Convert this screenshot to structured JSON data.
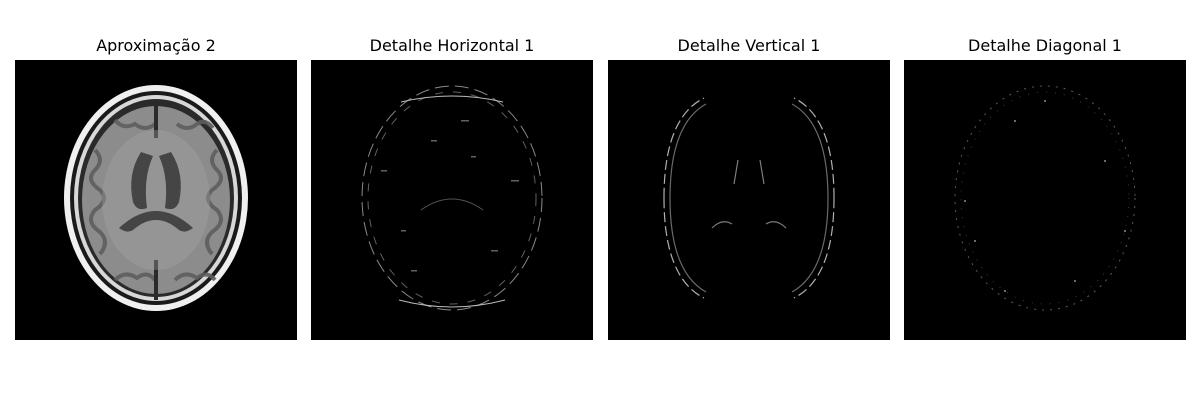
{
  "figure": {
    "panels": [
      {
        "title": "Aproximação 2",
        "image": "brain-mri-approximation-level-2"
      },
      {
        "title": "Detalhe Horizontal 1",
        "image": "brain-mri-horizontal-detail-coefficients"
      },
      {
        "title": "Detalhe Vertical 1",
        "image": "brain-mri-vertical-detail-coefficients"
      },
      {
        "title": "Detalhe Diagonal 1",
        "image": "brain-mri-diagonal-detail-coefficients"
      }
    ]
  },
  "colors": {
    "background": "#000000",
    "tissue": "#8a8a8a",
    "edge": "#e8e8e8"
  }
}
